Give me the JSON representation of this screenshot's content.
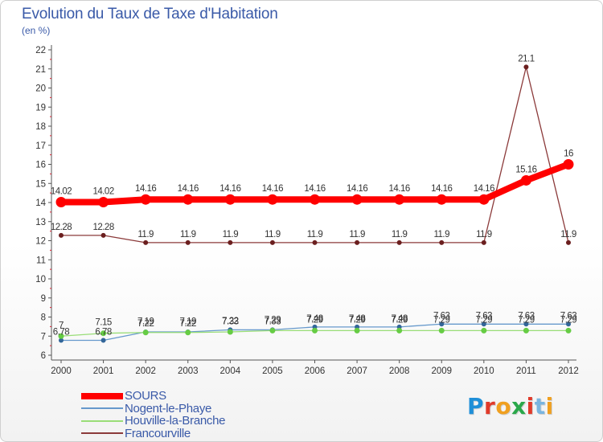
{
  "title": "Evolution du Taux de Taxe d'Habitation",
  "unit": "(en %)",
  "logo": "Proxiti",
  "logo_colors": [
    "#1f8fd8",
    "#e03a2a",
    "#f0a020",
    "#2aa84a",
    "#e03a2a",
    "#7ab5e0",
    "#f0a020"
  ],
  "chart_data": {
    "type": "line",
    "title": "Evolution du Taux de Taxe d'Habitation",
    "ylabel": "(en %)",
    "xlabel": "",
    "ylim": [
      6,
      22
    ],
    "yticks": [
      "6",
      "7",
      "8",
      "9",
      "10",
      "11",
      "12",
      "13",
      "14",
      "15",
      "16",
      "17",
      "18",
      "19",
      "20",
      "21",
      "22"
    ],
    "categories": [
      "2000",
      "2001",
      "2002",
      "2003",
      "2004",
      "2005",
      "2006",
      "2007",
      "2008",
      "2009",
      "2010",
      "2011",
      "2012"
    ],
    "grid": false,
    "series": [
      {
        "name": "SOURS",
        "color": "#ff0000",
        "marker": "#ff0000",
        "values": [
          14.02,
          14.02,
          14.16,
          14.16,
          14.16,
          14.16,
          14.16,
          14.16,
          14.16,
          14.16,
          14.16,
          15.16,
          16
        ],
        "labels": [
          "14.02",
          "14.02",
          "14.16",
          "14.16",
          "14.16",
          "14.16",
          "14.16",
          "14.16",
          "14.16",
          "14.16",
          "14.16",
          "15.16",
          "16"
        ]
      },
      {
        "name": "Nogent-le-Phaye",
        "color": "#6699cc",
        "marker": "#336699",
        "values": [
          6.78,
          6.78,
          7.22,
          7.22,
          7.33,
          7.33,
          7.48,
          7.48,
          7.48,
          7.63,
          7.63,
          7.63,
          7.63
        ],
        "labels": [
          "6.78",
          "6.78",
          "7.22",
          "7.22",
          "7.33",
          "7.33",
          "7.48",
          "7.48",
          "7.48",
          "7.63",
          "7.63",
          "7.63",
          "7.63"
        ]
      },
      {
        "name": "Houville-la-Branche",
        "color": "#99dd77",
        "marker": "#66cc44",
        "values": [
          7,
          7.15,
          7.19,
          7.19,
          7.22,
          7.29,
          7.29,
          7.29,
          7.29,
          7.29,
          7.29,
          7.29,
          7.29
        ],
        "labels": [
          "7",
          "7.15",
          "7.19",
          "7.19",
          "7.22",
          "7.29",
          "7.29",
          "7.29",
          "7.29",
          "7.29",
          "7.29",
          "7.29",
          "7.29"
        ]
      },
      {
        "name": "Francourville",
        "color": "#8b3a3a",
        "marker": "#6b1f1f",
        "values": [
          12.28,
          12.28,
          11.9,
          11.9,
          11.9,
          11.9,
          11.9,
          11.9,
          11.9,
          11.9,
          11.9,
          21.1,
          11.9
        ],
        "labels": [
          "12.28",
          "12.28",
          "11.9",
          "11.9",
          "11.9",
          "11.9",
          "11.9",
          "11.9",
          "11.9",
          "11.9",
          "11.9",
          "21.1",
          "11.9"
        ]
      }
    ]
  }
}
